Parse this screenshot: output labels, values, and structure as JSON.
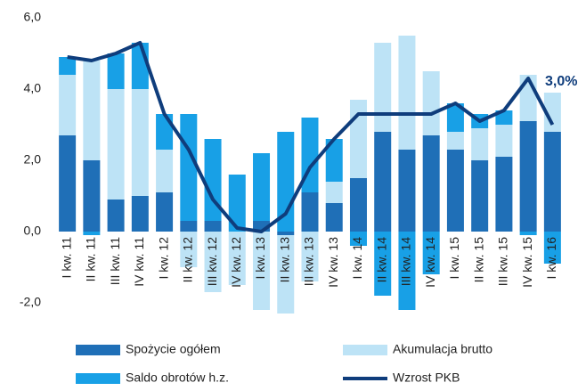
{
  "chart_data": {
    "type": "bar",
    "stacked": true,
    "categories": [
      "I kw. 11",
      "II kw. 11",
      "III kw. 11",
      "IV kw. 11",
      "I kw. 12",
      "II kw. 12",
      "III kw. 12",
      "IV kw. 12",
      "I kw. 13",
      "II kw. 13",
      "III kw. 13",
      "IV kw. 13",
      "I kw. 14",
      "II kw. 14",
      "III kw. 14",
      "IV kw. 14",
      "I kw. 15",
      "II kw. 15",
      "III kw. 15",
      "IV kw. 15",
      "I kw. 16"
    ],
    "series": [
      {
        "name": "Spożycie ogółem",
        "color": "#1f6fb7",
        "values": [
          2.7,
          2.0,
          0.9,
          1.0,
          1.1,
          0.3,
          0.3,
          0.0,
          0.3,
          -0.1,
          1.1,
          0.8,
          1.5,
          2.8,
          2.3,
          2.7,
          2.3,
          2.0,
          2.1,
          3.1,
          2.8
        ]
      },
      {
        "name": "Akumulacja brutto",
        "color": "#bde3f6",
        "values": [
          1.7,
          2.8,
          3.1,
          3.0,
          1.2,
          -1.0,
          -1.7,
          -1.5,
          -2.2,
          -2.2,
          -1.4,
          0.6,
          2.2,
          2.5,
          3.2,
          1.8,
          0.5,
          0.9,
          0.9,
          1.3,
          1.1
        ]
      },
      {
        "name": "Saldo obrotów h.z.",
        "color": "#18a0e6",
        "values": [
          0.5,
          -0.1,
          1.0,
          1.3,
          1.0,
          3.0,
          2.3,
          1.6,
          1.9,
          2.8,
          2.1,
          1.2,
          -0.4,
          -1.8,
          -2.2,
          -1.2,
          0.8,
          0.4,
          0.4,
          -0.1,
          -0.9
        ]
      },
      {
        "name": "Wzrost PKB",
        "type": "line",
        "color": "#0f3d7c",
        "values": [
          4.9,
          4.8,
          5.0,
          5.3,
          3.3,
          2.3,
          0.9,
          0.1,
          0.0,
          0.5,
          1.8,
          2.6,
          3.3,
          3.3,
          3.3,
          3.3,
          3.6,
          3.1,
          3.4,
          4.3,
          3.0
        ]
      }
    ],
    "ylim": [
      -2,
      6
    ],
    "yticks": [
      {
        "value": -2,
        "label": "-2,0"
      },
      {
        "value": 0,
        "label": "0,0"
      },
      {
        "value": 2,
        "label": "2,0"
      },
      {
        "value": 4,
        "label": "4,0"
      },
      {
        "value": 6,
        "label": "6,0"
      }
    ],
    "grid": false,
    "annotations": [
      {
        "text": "3,0%"
      }
    ],
    "legend": "bottom"
  }
}
